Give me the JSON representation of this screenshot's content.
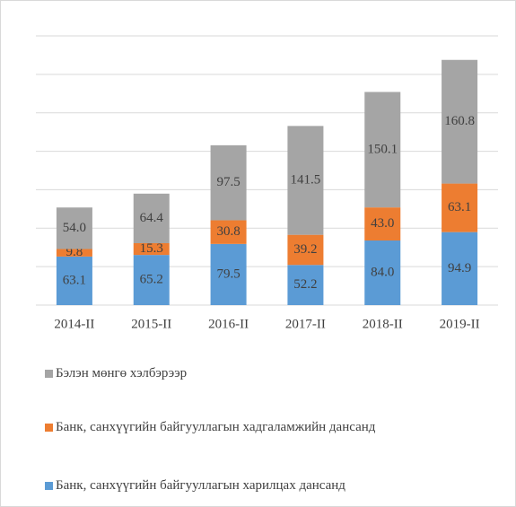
{
  "chart_data": {
    "type": "stacked_bar",
    "categories": [
      "2014-II",
      "2015-II",
      "2016-II",
      "2017-II",
      "2018-II",
      "2019-II"
    ],
    "series": [
      {
        "name": "Банк, санхүүгийн байгууллагын харилцах дансанд",
        "color": "#5b9bd5",
        "values": [
          63.1,
          65.2,
          79.5,
          52.2,
          84.0,
          94.9
        ],
        "value_labels": [
          "63.1",
          "65.2",
          "79.5",
          "52.2",
          "84.0",
          "94.9"
        ]
      },
      {
        "name": "Банк, санхүүгийн байгууллагын хадгаламжийн дансанд",
        "color": "#ed7d31",
        "values": [
          9.8,
          15.3,
          30.8,
          39.2,
          43.0,
          63.1
        ],
        "value_labels": [
          "9.8",
          "15.3",
          "30.8",
          "39.2",
          "43.0",
          "63.1"
        ]
      },
      {
        "name": "Бэлэн мөнгө хэлбэрээр",
        "color": "#a5a5a5",
        "values": [
          54.0,
          64.4,
          97.5,
          141.5,
          150.1,
          160.8
        ],
        "value_labels": [
          "54.0",
          "64.4",
          "97.5",
          "141.5",
          "150.1",
          "160.8"
        ]
      }
    ],
    "ylim": [
      0,
      350
    ],
    "yticks": [
      0,
      50,
      100,
      150,
      200,
      250,
      300,
      350
    ],
    "grid": true
  }
}
